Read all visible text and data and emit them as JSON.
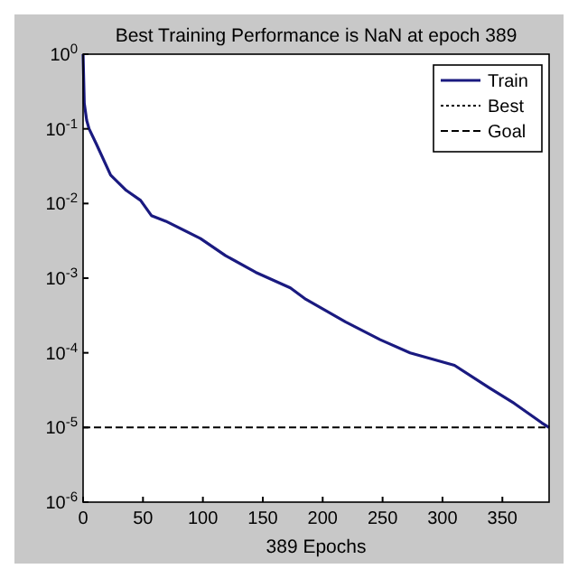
{
  "chart_data": {
    "type": "line",
    "title": "Best Training Performance is NaN at epoch 389",
    "xlabel": "389 Epochs",
    "x": [
      0,
      1,
      3,
      5,
      11,
      23,
      36,
      48,
      57,
      69,
      98,
      119,
      144,
      173,
      186,
      219,
      248,
      273,
      310,
      339,
      360,
      383,
      389
    ],
    "series": [
      {
        "name": "Train",
        "color": "#1a1a80",
        "values": [
          1,
          0.22,
          0.13,
          0.1,
          0.063,
          0.024,
          0.015,
          0.011,
          0.0069,
          0.0058,
          0.0034,
          0.002,
          0.0012,
          0.00074,
          0.00052,
          0.00026,
          0.00015,
          0.0001,
          6.8e-05,
          3.4e-05,
          2.1e-05,
          1.15e-05,
          1e-05
        ]
      },
      {
        "name": "Best",
        "color": "#000000",
        "line_style": "dotted",
        "values": [
          null,
          null,
          null,
          null,
          null,
          null,
          null,
          null,
          null,
          null,
          null,
          null,
          null,
          null,
          null,
          null,
          null,
          null,
          null,
          null,
          null,
          null,
          null
        ]
      }
    ],
    "log": "y",
    "xlim": [
      0,
      389
    ],
    "xticks": [
      0,
      50,
      100,
      150,
      200,
      250,
      300,
      350
    ],
    "ylim": [
      1e-06,
      1
    ],
    "yticks": [
      {
        "value": 1,
        "label": "10$^{0}$"
      },
      {
        "value": 0.1,
        "label": "10$^{-1}$"
      },
      {
        "value": 0.01,
        "label": "10$^{-2}$"
      },
      {
        "value": 0.001,
        "label": "10$^{-3}$"
      },
      {
        "value": 0.0001,
        "label": "10$^{-4}$"
      },
      {
        "value": 1e-05,
        "label": "10$^{-5}$"
      },
      {
        "value": 1e-06,
        "label": "10$^{-6}$"
      }
    ],
    "ref_lines": [
      {
        "axis": "y",
        "value": 1e-05,
        "label": "Goal",
        "color": "#000000",
        "line_style": "dashed"
      }
    ],
    "legend": "top right",
    "grid": false,
    "line_style": "solid",
    "marker": "none"
  }
}
